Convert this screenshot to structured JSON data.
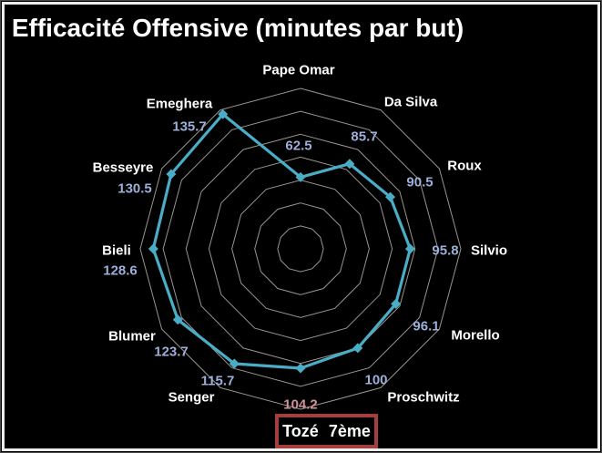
{
  "background": "#000000",
  "frame_border_color": "#ededed",
  "chart_data": {
    "type": "radar",
    "title": "Efficacité Offensive (minutes par but)",
    "categories": [
      "Pape Omar",
      "Da Silva",
      "Roux",
      "Silvio",
      "Morello",
      "Proschwitz",
      "Tozé",
      "Senger",
      "Blumer",
      "Bieli",
      "Besseyre",
      "Emeghera"
    ],
    "series": [
      {
        "name": "minutes par but",
        "color": "#4bacc6",
        "values": [
          62.5,
          85.7,
          90.5,
          95.8,
          96.1,
          100,
          104.2,
          115.7,
          123.7,
          128.6,
          130.5,
          135.7
        ]
      }
    ],
    "value_labels": [
      "62.5",
      "85.7",
      "90.5",
      "95.8",
      "96.1",
      "100",
      "104.2",
      "115.7",
      "123.7",
      "128.6",
      "130.5",
      "135.7"
    ],
    "axis": {
      "min": 0,
      "max": 140,
      "step": 20,
      "rings": 7,
      "grid_color": "#9a948e",
      "spokes_visible": false
    },
    "category_label_color": "#ffffff",
    "value_label_color": "#9dafd8",
    "highlight_index": 6,
    "highlight_value_color": "#d0929b",
    "legend_position": "none",
    "grid": true
  },
  "highlight": {
    "player": "Tozé",
    "rank": "7ème",
    "box_border_color": "#a53f3d",
    "text_color": "#ffffff"
  }
}
